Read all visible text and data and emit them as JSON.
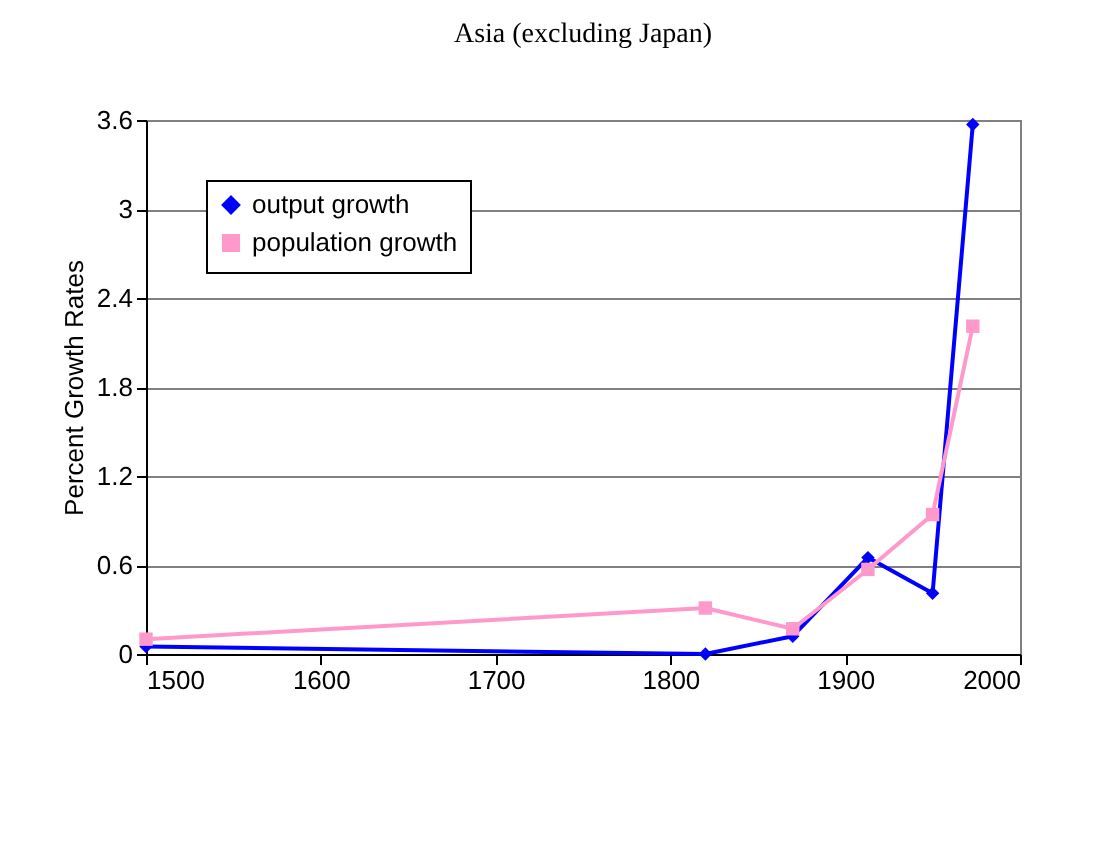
{
  "chart_data": {
    "type": "line",
    "title": "Asia (excluding Japan)",
    "ylabel": "Percent Growth Rates",
    "x": [
      1500,
      1820,
      1870,
      1913,
      1950,
      1973
    ],
    "series": [
      {
        "name": "output growth",
        "color": "#0000ff",
        "marker": "diamond",
        "values": [
          0.05,
          0,
          0.12,
          0.65,
          0.41,
          3.57
        ]
      },
      {
        "name": "population growth",
        "color": "#ff99cc",
        "marker": "square",
        "values": [
          0.1,
          0.31,
          0.17,
          0.57,
          0.94,
          2.21
        ]
      }
    ],
    "xlim": [
      1500,
      2000
    ],
    "xticks": [
      1500,
      1600,
      1700,
      1800,
      1900,
      2000
    ],
    "ylim": [
      0,
      3.6
    ],
    "yticks": [
      0,
      0.6,
      1.2,
      1.8,
      2.4,
      3,
      3.6
    ],
    "grid": "y",
    "legend": "top left"
  }
}
